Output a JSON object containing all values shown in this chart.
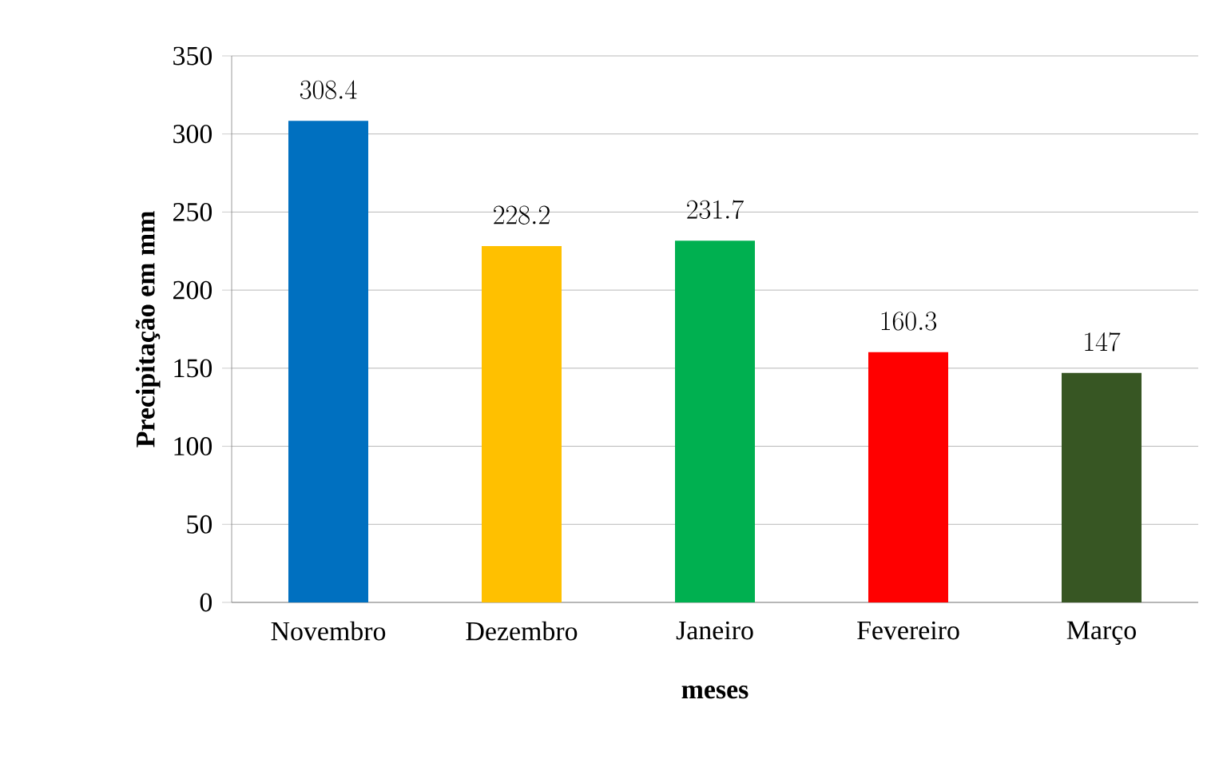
{
  "chart_data": {
    "type": "bar",
    "xlabel": "meses",
    "ylabel": "Precipitação em mm",
    "categories": [
      "Novembro",
      "Dezembro",
      "Janeiro",
      "Fevereiro",
      "Março"
    ],
    "values": [
      308.4,
      228.2,
      231.7,
      160.3,
      147
    ],
    "colors": [
      "#0070c0",
      "#ffc000",
      "#00b050",
      "#ff0000",
      "#375623"
    ],
    "ylim": [
      0,
      350
    ],
    "yticks": [
      0,
      50,
      100,
      150,
      200,
      250,
      300,
      350
    ],
    "grid": "y",
    "data_labels": true
  }
}
